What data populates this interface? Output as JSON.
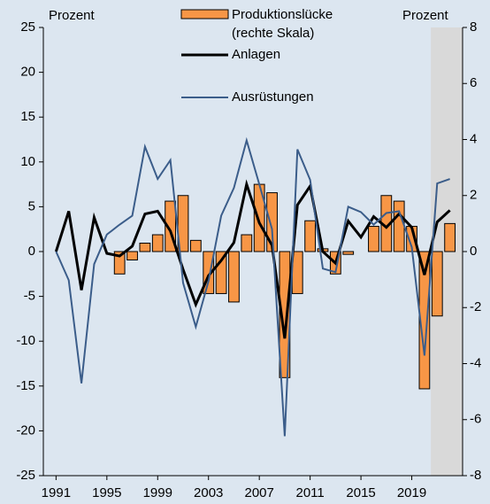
{
  "chart_data": {
    "type": "bar-line",
    "y_label": "Prozent",
    "y2_label": "Prozent",
    "x": [
      1991,
      1992,
      1993,
      1994,
      1995,
      1996,
      1997,
      1998,
      1999,
      2000,
      2001,
      2002,
      2003,
      2004,
      2005,
      2006,
      2007,
      2008,
      2009,
      2010,
      2011,
      2012,
      2013,
      2014,
      2015,
      2016,
      2017,
      2018,
      2019,
      2020,
      2021,
      2022
    ],
    "xlim": [
      1990,
      2023
    ],
    "xticks": [
      1991,
      1995,
      1999,
      2003,
      2007,
      2011,
      2015,
      2019
    ],
    "ylim": [
      -25,
      25
    ],
    "yticks": [
      -25,
      -20,
      -15,
      -10,
      -5,
      0,
      5,
      10,
      15,
      20,
      25
    ],
    "y2lim": [
      -8,
      8
    ],
    "y2ticks": [
      -8,
      -6,
      -4,
      -2,
      0,
      2,
      4,
      6,
      8
    ],
    "shaded_x": [
      2020.5,
      2023
    ],
    "shade_color": "#d9d9d9",
    "series": [
      {
        "name": "Produktionslücke (rechte Skala)",
        "type": "bar",
        "axis": "y2",
        "color": "#f79646",
        "values": [
          0,
          0,
          0,
          0,
          0,
          -0.8,
          -0.3,
          0.3,
          0.6,
          1.8,
          2.0,
          0.4,
          -1.5,
          -1.5,
          -1.8,
          0.6,
          2.4,
          2.1,
          -4.5,
          -1.5,
          1.1,
          0.1,
          -0.8,
          -0.1,
          0,
          0.9,
          2.0,
          1.8,
          0.9,
          -4.9,
          -2.3,
          1.0
        ]
      },
      {
        "name": "Anlagen",
        "type": "line",
        "color": "#000000",
        "width": 3,
        "values": [
          0,
          4.5,
          -4.3,
          3.8,
          -0.2,
          -0.5,
          0.6,
          4.2,
          4.5,
          2.3,
          -2.0,
          -5.9,
          -2.7,
          -1.0,
          1.0,
          7.5,
          3.2,
          0.7,
          -9.7,
          5.2,
          7.3,
          0,
          -1.3,
          3.4,
          1.6,
          3.9,
          2.7,
          4.2,
          2.7,
          -2.6,
          3.3,
          4.6
        ]
      },
      {
        "name": "Ausrüstungen",
        "type": "line",
        "color": "#3b5d8a",
        "width": 2,
        "values": [
          0,
          -3.2,
          -14.7,
          -1.4,
          1.9,
          3.0,
          4.0,
          11.7,
          8.1,
          10.2,
          -3.5,
          -8.4,
          -3.3,
          4.0,
          7.1,
          12.4,
          7.5,
          2.5,
          -20.6,
          11.4,
          8.0,
          -1.9,
          -2.3,
          5.0,
          4.4,
          3.0,
          4.3,
          4.5,
          0.5,
          -11.6,
          7.6,
          8.1
        ]
      }
    ]
  }
}
